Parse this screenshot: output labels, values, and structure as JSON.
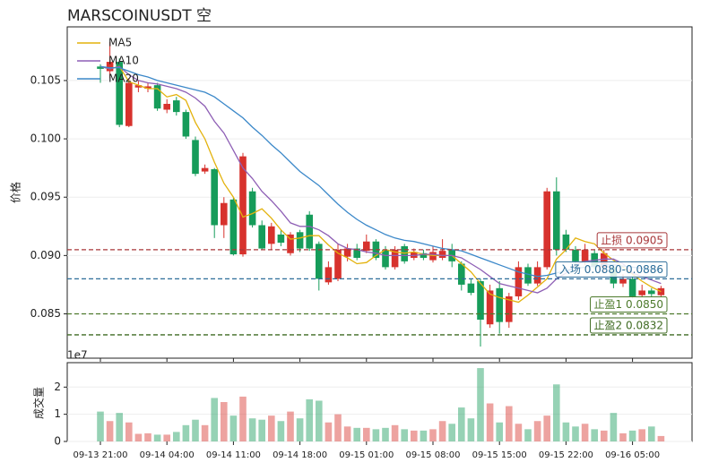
{
  "chart_data": {
    "type": "candlestick",
    "title": "MARSCOINUSDT  空",
    "ylabel": "价格",
    "categories": [
      "09-13 21:00",
      "09-13 22:00",
      "09-13 23:00",
      "09-14 00:00",
      "09-14 01:00",
      "09-14 02:00",
      "09-14 03:00",
      "09-14 04:00",
      "09-14 05:00",
      "09-14 06:00",
      "09-14 07:00",
      "09-14 08:00",
      "09-14 09:00",
      "09-14 10:00",
      "09-14 11:00",
      "09-14 12:00",
      "09-14 13:00",
      "09-14 14:00",
      "09-14 15:00",
      "09-14 16:00",
      "09-14 17:00",
      "09-14 18:00",
      "09-14 19:00",
      "09-14 20:00",
      "09-14 21:00",
      "09-14 22:00",
      "09-14 23:00",
      "09-15 00:00",
      "09-15 01:00",
      "09-15 02:00",
      "09-15 03:00",
      "09-15 04:00",
      "09-15 05:00",
      "09-15 06:00",
      "09-15 07:00",
      "09-15 08:00",
      "09-15 09:00",
      "09-15 10:00",
      "09-15 11:00",
      "09-15 12:00",
      "09-15 13:00",
      "09-15 14:00",
      "09-15 15:00",
      "09-15 16:00",
      "09-15 17:00",
      "09-15 18:00",
      "09-15 19:00",
      "09-15 20:00",
      "09-15 21:00",
      "09-15 22:00",
      "09-15 23:00",
      "09-16 00:00",
      "09-16 01:00",
      "09-16 02:00",
      "09-16 03:00",
      "09-16 04:00",
      "09-16 05:00",
      "09-16 06:00",
      "09-16 07:00",
      "09-16 08:00"
    ],
    "open": [
      0.106,
      0.1066,
      0.1012,
      0.1048,
      0.1046,
      0.1045,
      0.1026,
      0.103,
      0.1023,
      0.1002,
      0.097,
      0.0975,
      0.0926,
      0.0945,
      0.0901,
      0.0985,
      0.0926,
      0.0906,
      0.0925,
      0.0911,
      0.0918,
      0.0906,
      0.0906,
      0.088,
      0.089,
      0.0905,
      0.0906,
      0.0898,
      0.0912,
      0.0898,
      0.089,
      0.0905,
      0.0895,
      0.0903,
      0.0898,
      0.0903,
      0.0904,
      0.0895,
      0.0875,
      0.0868,
      0.0845,
      0.087,
      0.0843,
      0.0865,
      0.089,
      0.0876,
      0.089,
      0.0955,
      0.0905,
      0.0905,
      0.0895,
      0.0905,
      0.089,
      0.0902,
      0.0876,
      0.088,
      0.0865,
      0.087,
      0.0867,
      0.0872
    ],
    "close": [
      0.1062,
      0.1058,
      0.1066,
      0.1011,
      0.1044,
      0.1043,
      0.1046,
      0.1025,
      0.1033,
      0.1023,
      0.0999,
      0.0972,
      0.0974,
      0.0926,
      0.0948,
      0.0901,
      0.0955,
      0.0926,
      0.091,
      0.0918,
      0.0902,
      0.092,
      0.0935,
      0.091,
      0.0877,
      0.088,
      0.0899,
      0.0906,
      0.0904,
      0.0912,
      0.0905,
      0.089,
      0.0908,
      0.0898,
      0.0902,
      0.0896,
      0.0898,
      0.0905,
      0.0893,
      0.0876,
      0.0878,
      0.0841,
      0.0872,
      0.0843,
      0.0865,
      0.089,
      0.0876,
      0.089,
      0.0955,
      0.0918,
      0.0905,
      0.0895,
      0.0902,
      0.089,
      0.089,
      0.0876,
      0.088,
      0.0866,
      0.087,
      0.0866
    ],
    "high": [
      0.1064,
      0.1083,
      0.1069,
      0.1052,
      0.105,
      0.1048,
      0.1048,
      0.1034,
      0.1036,
      0.1025,
      0.1002,
      0.0978,
      0.0975,
      0.095,
      0.095,
      0.0988,
      0.0958,
      0.093,
      0.0928,
      0.0922,
      0.092,
      0.0922,
      0.0938,
      0.0912,
      0.0895,
      0.091,
      0.091,
      0.091,
      0.0918,
      0.0914,
      0.0908,
      0.0908,
      0.091,
      0.0906,
      0.0905,
      0.0908,
      0.0914,
      0.091,
      0.0895,
      0.088,
      0.088,
      0.0875,
      0.0878,
      0.0868,
      0.0895,
      0.0893,
      0.0895,
      0.0958,
      0.0967,
      0.0922,
      0.0908,
      0.091,
      0.0905,
      0.0905,
      0.0892,
      0.0884,
      0.0882,
      0.0875,
      0.0872,
      0.0874
    ],
    "low": [
      0.1048,
      0.1052,
      0.101,
      0.101,
      0.104,
      0.104,
      0.1024,
      0.1022,
      0.102,
      0.1,
      0.0968,
      0.097,
      0.0915,
      0.0915,
      0.09,
      0.0899,
      0.0924,
      0.0905,
      0.0905,
      0.0908,
      0.09,
      0.0903,
      0.0904,
      0.087,
      0.0875,
      0.0878,
      0.0895,
      0.0896,
      0.0902,
      0.0896,
      0.0888,
      0.0888,
      0.0893,
      0.0896,
      0.0896,
      0.0894,
      0.0896,
      0.089,
      0.087,
      0.0866,
      0.0822,
      0.0838,
      0.0833,
      0.0838,
      0.0862,
      0.0874,
      0.0874,
      0.0888,
      0.09,
      0.0903,
      0.089,
      0.0892,
      0.0888,
      0.0885,
      0.0872,
      0.0873,
      0.0863,
      0.0864,
      0.0864,
      0.0864
    ],
    "up_color": "#169c5a",
    "down_color": "#d7322d",
    "ylim": [
      0.0812,
      0.1096
    ],
    "yticks": [
      0.085,
      {
        "value": 0.09,
        "label": "0.090"
      },
      0.095,
      {
        "value": 0.1,
        "label": "0.100"
      },
      0.105
    ],
    "xticks": [
      "09-13 21:00",
      "09-14 04:00",
      "09-14 11:00",
      "09-14 18:00",
      "09-15 01:00",
      "09-15 08:00",
      "09-15 15:00",
      "09-15 22:00",
      "09-16 05:00"
    ],
    "grid": true,
    "legend": "upper left",
    "series": [
      {
        "name": "MA5",
        "color": "#e3b20c",
        "values": [
          0.1062,
          0.106,
          0.1062,
          0.1049,
          0.1046,
          0.1043,
          0.1043,
          0.1036,
          0.1038,
          0.1033,
          0.1014,
          0.1,
          0.098,
          0.0962,
          0.095,
          0.0933,
          0.0936,
          0.094,
          0.0932,
          0.0922,
          0.0914,
          0.0915,
          0.0917,
          0.0917,
          0.0909,
          0.0902,
          0.0898,
          0.0893,
          0.0894,
          0.09,
          0.0905,
          0.0903,
          0.0902,
          0.0903,
          0.0901,
          0.09,
          0.09,
          0.09,
          0.0893,
          0.0886,
          0.0876,
          0.0867,
          0.0864,
          0.0862,
          0.086,
          0.0866,
          0.0873,
          0.088,
          0.0897,
          0.0905,
          0.0915,
          0.0912,
          0.091,
          0.0902,
          0.0896,
          0.089,
          0.0884,
          0.0878,
          0.0873,
          0.0869
        ]
      },
      {
        "name": "MA10",
        "color": "#8e5fb5",
        "values": [
          0.1062,
          0.106,
          0.1062,
          0.1055,
          0.105,
          0.1048,
          0.1047,
          0.1045,
          0.1043,
          0.104,
          0.1035,
          0.1028,
          0.1015,
          0.1005,
          0.099,
          0.0975,
          0.0966,
          0.0955,
          0.0947,
          0.0938,
          0.0928,
          0.0925,
          0.0925,
          0.0922,
          0.0917,
          0.091,
          0.0906,
          0.0905,
          0.0903,
          0.0902,
          0.09,
          0.09,
          0.09,
          0.09,
          0.0901,
          0.0901,
          0.09,
          0.09,
          0.0898,
          0.0893,
          0.0888,
          0.0882,
          0.0876,
          0.0874,
          0.0872,
          0.087,
          0.0868,
          0.0872,
          0.088,
          0.0885,
          0.0892,
          0.0895,
          0.0896,
          0.0897,
          0.0897,
          0.0893,
          0.0885,
          0.0882,
          0.0879,
          0.0876
        ]
      },
      {
        "name": "MA20",
        "color": "#3b88c9",
        "values": [
          0.1062,
          0.1061,
          0.1061,
          0.1058,
          0.1055,
          0.1053,
          0.105,
          0.1048,
          0.1046,
          0.1044,
          0.1042,
          0.104,
          0.1036,
          0.103,
          0.1024,
          0.1018,
          0.101,
          0.1003,
          0.0995,
          0.0988,
          0.098,
          0.0972,
          0.0966,
          0.096,
          0.0952,
          0.0944,
          0.0937,
          0.0931,
          0.0926,
          0.0922,
          0.0918,
          0.0915,
          0.0913,
          0.0912,
          0.091,
          0.0908,
          0.0906,
          0.0905,
          0.0904,
          0.0901,
          0.0898,
          0.0895,
          0.0892,
          0.0889,
          0.0886,
          0.0884,
          0.0882,
          0.0883,
          0.0885,
          0.0887,
          0.0889,
          0.089,
          0.0891,
          0.0892,
          0.0892,
          0.0891,
          0.089,
          0.0889,
          0.0888,
          0.0887
        ]
      }
    ],
    "levels": [
      {
        "value": 0.0905,
        "label": "止损 0.0905",
        "color": "#a8373a"
      },
      {
        "value": 0.088,
        "label": "入场 0.0880-0.0886",
        "color": "#2c6d99"
      },
      {
        "value": 0.085,
        "label": "止盈1 0.0850",
        "color": "#4d7a2c"
      },
      {
        "value": 0.0832,
        "label": "止盈2 0.0832",
        "color": "#3f6b23"
      }
    ],
    "volume": {
      "ylabel": "成交量",
      "offset_label": "1e7",
      "values": [
        1.1,
        0.75,
        1.05,
        0.7,
        0.28,
        0.3,
        0.25,
        0.25,
        0.35,
        0.6,
        0.8,
        0.6,
        1.6,
        1.45,
        0.95,
        1.65,
        0.85,
        0.8,
        0.95,
        0.75,
        1.1,
        0.85,
        1.55,
        1.5,
        0.7,
        1.0,
        0.55,
        0.5,
        0.5,
        0.45,
        0.5,
        0.6,
        0.45,
        0.4,
        0.4,
        0.45,
        0.75,
        0.65,
        1.25,
        0.85,
        2.7,
        1.4,
        0.7,
        1.3,
        0.65,
        0.45,
        0.75,
        0.95,
        2.1,
        0.7,
        0.55,
        0.65,
        0.45,
        0.4,
        1.05,
        0.3,
        0.4,
        0.45,
        0.55,
        0.2
      ],
      "ylim": [
        0,
        2.9
      ],
      "yticks": [
        0,
        1,
        2
      ]
    }
  }
}
